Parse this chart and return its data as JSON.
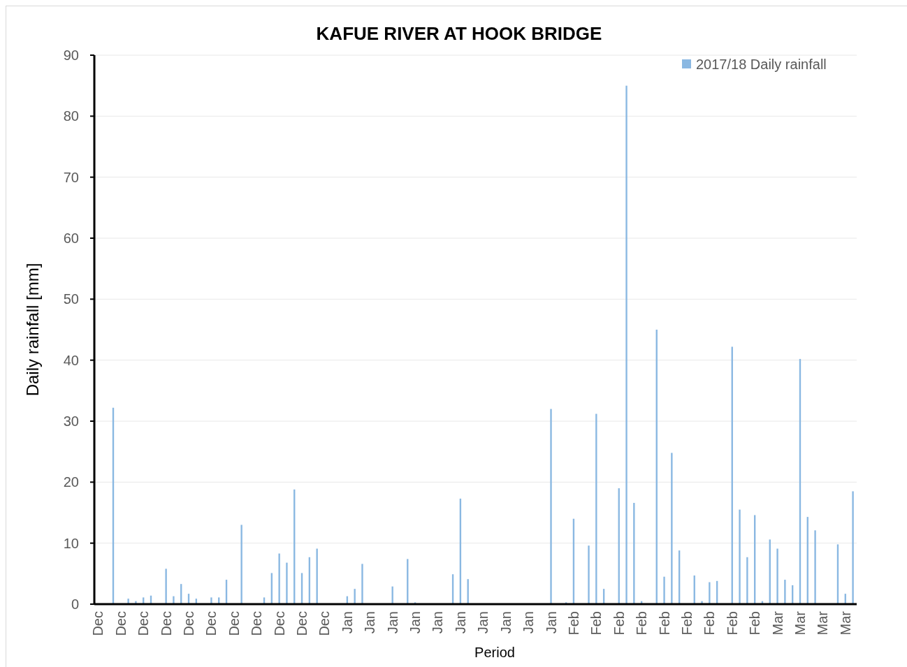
{
  "chart_data": {
    "type": "bar",
    "title": "KAFUE RIVER AT HOOK BRIDGE",
    "xlabel": "Period",
    "ylabel": "Daily rainfall [mm]",
    "categories": [
      "Dec",
      null,
      null,
      "Dec",
      null,
      null,
      "Dec",
      null,
      null,
      "Dec",
      null,
      null,
      "Dec",
      null,
      null,
      "Dec",
      null,
      null,
      "Dec",
      null,
      null,
      "Dec",
      null,
      null,
      "Dec",
      null,
      null,
      "Dec",
      null,
      null,
      "Dec",
      null,
      null,
      "Jan",
      null,
      null,
      "Jan",
      null,
      null,
      "Jan",
      null,
      null,
      "Jan",
      null,
      null,
      "Jan",
      null,
      null,
      "Jan",
      null,
      null,
      "Jan",
      null,
      null,
      "Jan",
      null,
      null,
      "Jan",
      null,
      null,
      "Jan",
      null,
      null,
      "Feb",
      null,
      null,
      "Feb",
      null,
      null,
      "Feb",
      null,
      null,
      "Feb",
      null,
      null,
      "Feb",
      null,
      null,
      "Feb",
      null,
      null,
      "Feb",
      null,
      null,
      "Feb",
      null,
      null,
      "Feb",
      null,
      null,
      "Mar",
      null,
      null,
      "Mar",
      null,
      null,
      "Mar",
      null,
      null,
      "Mar",
      null
    ],
    "series": [
      {
        "name": "2017/18 Daily rainfall",
        "color": "#8ab8e2",
        "values": [
          0,
          0,
          32.2,
          0,
          0.9,
          0.5,
          1.1,
          1.4,
          0,
          5.8,
          1.3,
          3.3,
          1.7,
          0.9,
          0,
          1.1,
          1.1,
          4.0,
          0,
          13.0,
          0,
          0,
          1.1,
          5.1,
          8.3,
          6.8,
          18.8,
          5.1,
          7.7,
          9.1,
          0,
          0,
          0,
          1.3,
          2.5,
          6.6,
          0,
          0,
          0,
          2.9,
          0,
          7.4,
          0.3,
          0,
          0,
          0,
          0,
          4.9,
          17.3,
          4.1,
          0,
          0,
          0,
          0,
          0,
          0,
          0,
          0,
          0,
          0,
          32,
          0,
          0.3,
          14,
          0,
          9.6,
          31.2,
          2.5,
          0,
          19,
          85,
          16.6,
          0.5,
          0,
          45,
          4.5,
          24.8,
          8.8,
          0,
          4.7,
          0.5,
          3.6,
          3.8,
          0,
          42.2,
          15.5,
          7.7,
          14.6,
          0.5,
          10.6,
          9.1,
          4.0,
          3.1,
          40.2,
          14.3,
          12.1,
          0,
          0,
          9.8,
          1.7,
          18.5
        ]
      }
    ],
    "ylim": [
      0,
      90
    ],
    "yticks": [
      0,
      10,
      20,
      30,
      40,
      50,
      60,
      70,
      80,
      90
    ],
    "grid": "y",
    "legend": "top right"
  }
}
